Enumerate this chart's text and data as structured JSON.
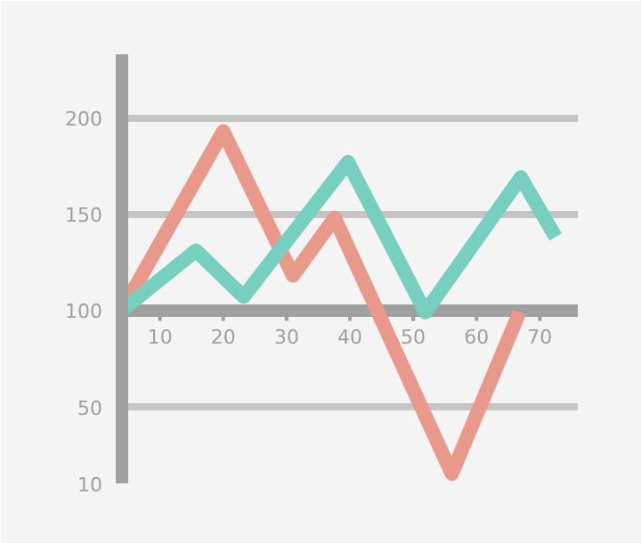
{
  "chart_data": {
    "type": "line",
    "x": [
      4,
      15.7,
      23.2,
      39.7,
      51.9,
      67,
      72.5
    ],
    "series": [
      {
        "color": "#e9998a",
        "x": [
          4,
          20,
          31,
          37.6,
          56.1,
          66.8
        ],
        "values": [
          100,
          193,
          118,
          148,
          15,
          99
        ]
      },
      {
        "color": "#76cfbf",
        "values": [
          100,
          131,
          107,
          177,
          99,
          169,
          138
        ]
      }
    ],
    "xlim": [
      4,
      76
    ],
    "ylim": [
      10,
      233
    ],
    "xticks": [
      10,
      20,
      30,
      40,
      50,
      60,
      70
    ],
    "yticks": [
      10,
      50,
      100,
      150,
      200
    ],
    "grid": "y",
    "marker": "none",
    "line_style": "solid"
  }
}
